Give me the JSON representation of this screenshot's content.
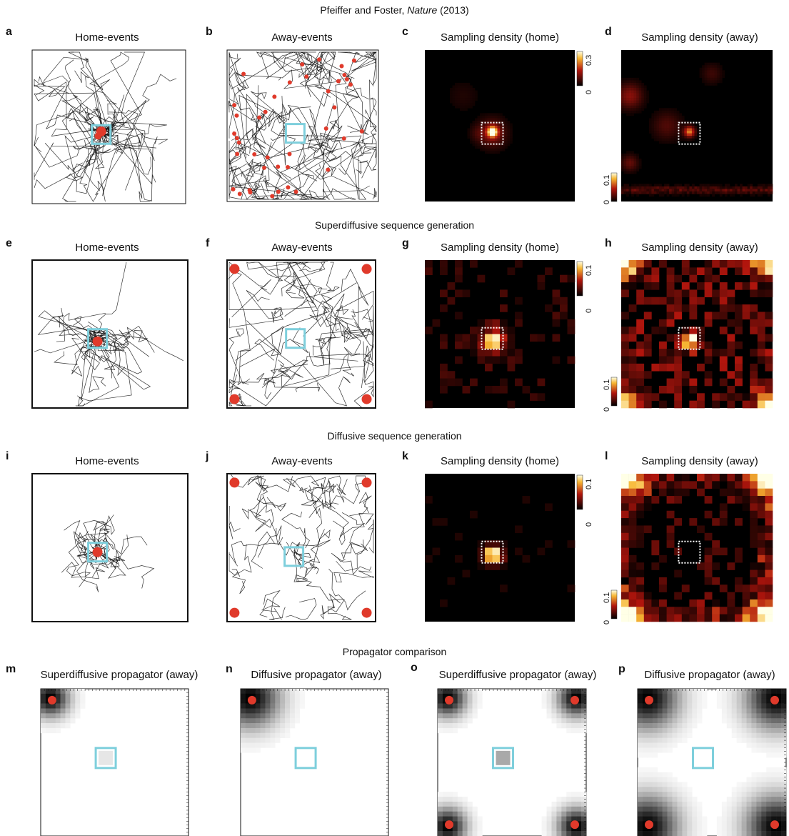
{
  "header": {
    "authors": "Pfeiffer and Foster, ",
    "journal": "Nature",
    "year": " (2013)"
  },
  "sections": {
    "superdiffusive": "Superdiffusive sequence generation",
    "diffusive": "Diffusive sequence generation",
    "propagator": "Propagator comparison"
  },
  "panels": {
    "a": {
      "letter": "a",
      "title": "Home-events"
    },
    "b": {
      "letter": "b",
      "title": "Away-events"
    },
    "c": {
      "letter": "c",
      "title": "Sampling density (home)",
      "cb_min": "0",
      "cb_max": "0.3"
    },
    "d": {
      "letter": "d",
      "title": "Sampling density (away)",
      "cb_min": "0",
      "cb_max": "0.1"
    },
    "e": {
      "letter": "e",
      "title": "Home-events"
    },
    "f": {
      "letter": "f",
      "title": "Away-events"
    },
    "g": {
      "letter": "g",
      "title": "Sampling density (home)",
      "cb_min": "0",
      "cb_max": "0.1"
    },
    "h": {
      "letter": "h",
      "title": "Sampling density (away)",
      "cb_min": "0",
      "cb_max": "0.1"
    },
    "i": {
      "letter": "i",
      "title": "Home-events"
    },
    "j": {
      "letter": "j",
      "title": "Away-events"
    },
    "k": {
      "letter": "k",
      "title": "Sampling density (home)",
      "cb_min": "0",
      "cb_max": "0.1"
    },
    "l": {
      "letter": "l",
      "title": "Sampling density (away)",
      "cb_min": "0",
      "cb_max": "0.1"
    },
    "m": {
      "letter": "m",
      "title": "Superdiffusive propagator (away)"
    },
    "n": {
      "letter": "n",
      "title": "Diffusive propagator (away)"
    },
    "o": {
      "letter": "o",
      "title": "Superdiffusive propagator (away)"
    },
    "p": {
      "letter": "p",
      "title": "Diffusive propagator (away)"
    }
  },
  "colors": {
    "home_box": "#7ecfdc",
    "event_dot": "#e03a2b",
    "trajectory": "#111111",
    "heat_low": "#000000",
    "heat_mid": "#c0170f",
    "heat_high": "#ffffe0"
  }
}
